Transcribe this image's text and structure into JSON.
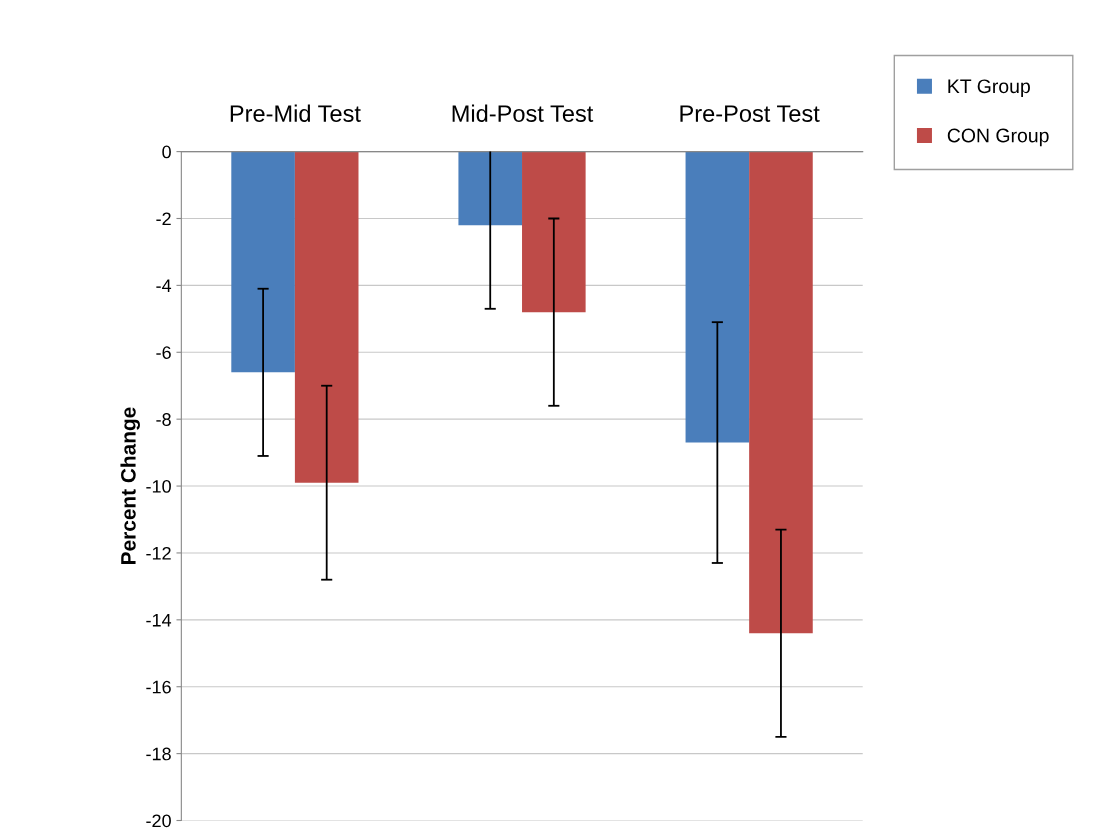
{
  "chart_data": {
    "type": "bar",
    "ylabel": "Percent Change",
    "categories": [
      "Pre-Mid Test",
      "Mid-Post Test",
      "Pre-Post Test"
    ],
    "series": [
      {
        "name": "KT Group",
        "color": "#4a7ebb",
        "values": [
          -6.6,
          -2.2,
          -8.7
        ],
        "errors": [
          2.5,
          2.5,
          3.6
        ]
      },
      {
        "name": "CON Group",
        "color": "#be4b48",
        "values": [
          -9.9,
          -4.8,
          -14.4
        ],
        "errors": [
          2.9,
          2.8,
          3.1
        ]
      }
    ],
    "ylim": [
      -20,
      0
    ],
    "yticks": [
      -20,
      -18,
      -16,
      -14,
      -12,
      -10,
      -8,
      -6,
      -4,
      -2,
      0
    ],
    "grid": "y",
    "legend": "top right"
  }
}
